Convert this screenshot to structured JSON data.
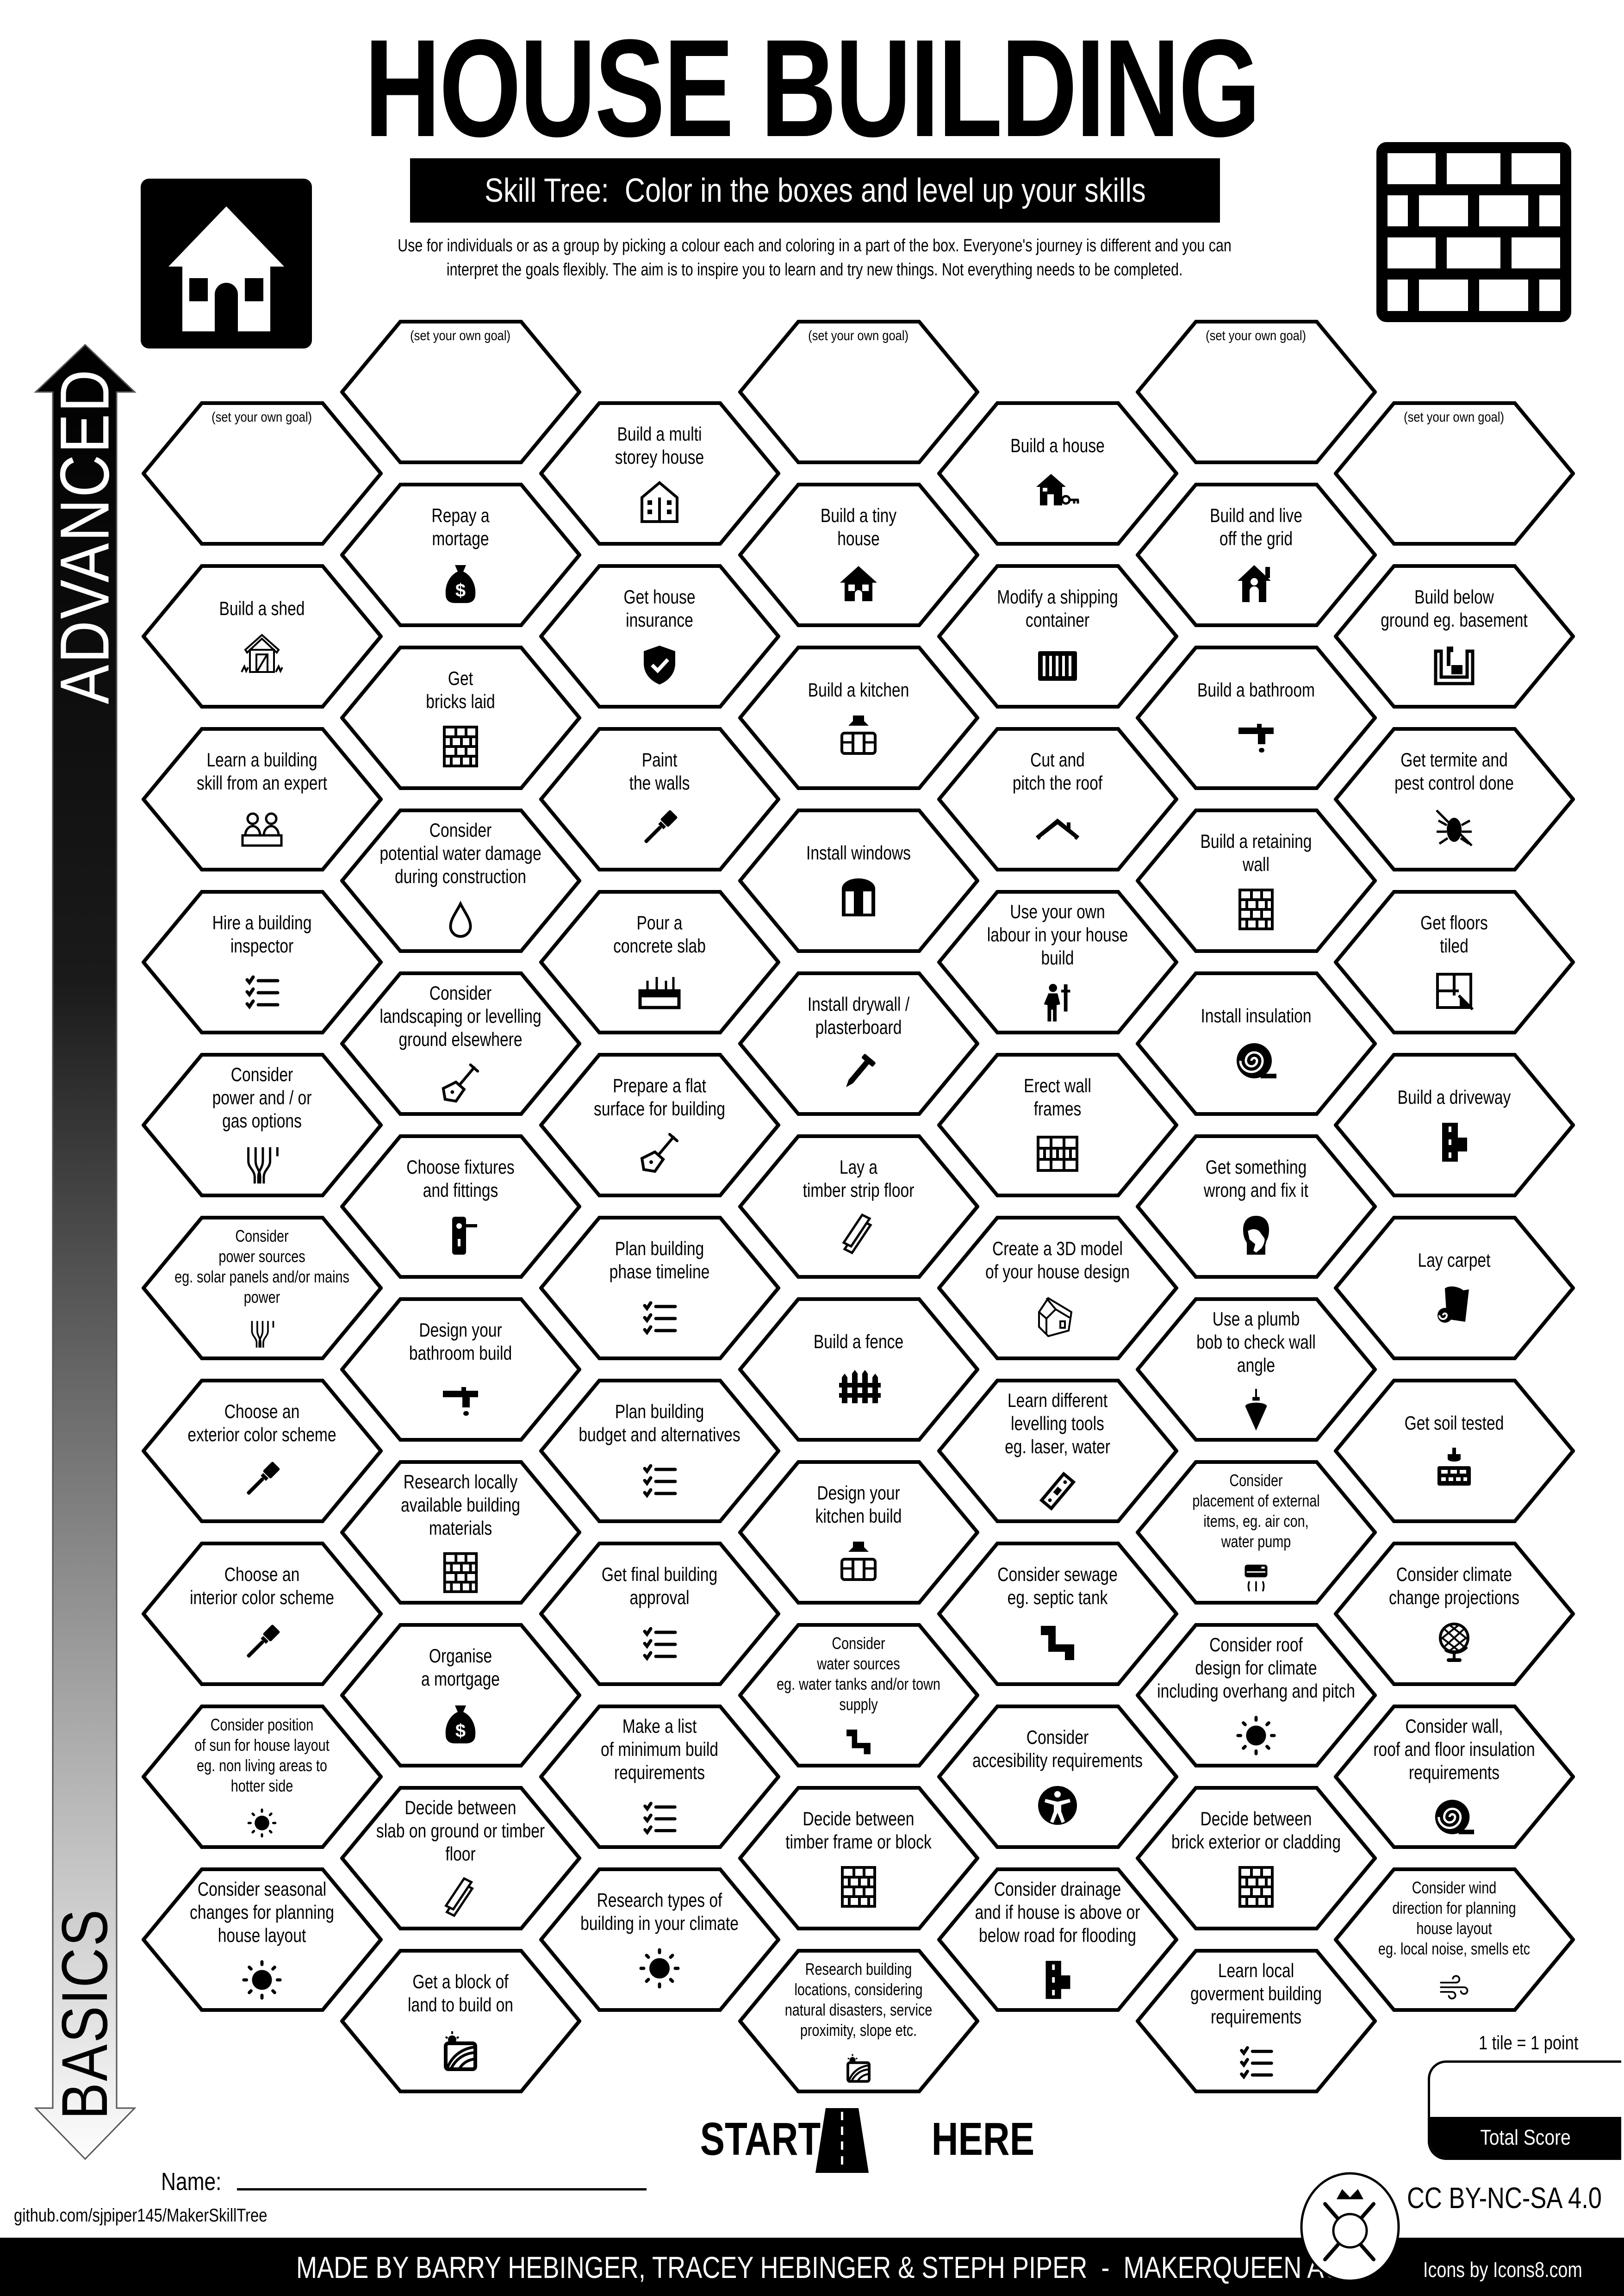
{
  "header": {
    "title": "HOUSE BUILDING",
    "subtitle": "Skill Tree:  Color in the boxes and level up your skills",
    "description_line1": "Use for individuals or as a group by picking a colour each and coloring in a part of the box.  Everyone's journey is different and you can",
    "description_line2": "interpret the goals flexibly.  The aim is to inspire you to learn and try new things. Not everything needs to be completed.",
    "left_icon": "house-icon",
    "right_icon": "brick-wall-icon"
  },
  "progress_arrow": {
    "top_label": "ADVANCED",
    "bottom_label": "BASICS"
  },
  "goal_text": "(set your own goal)",
  "columns": [
    [
      {
        "goal": true
      },
      {
        "text": "Build a shed",
        "icon": "shed"
      },
      {
        "text": "Learn a building\nskill from an expert",
        "icon": "teachers"
      },
      {
        "text": "Hire a building\ninspector",
        "icon": "checklist"
      },
      {
        "text": "Consider\npower and / or\ngas options",
        "icon": "cables"
      },
      {
        "text": "Consider\npower sources\neg. solar panels and/or mains\npower",
        "icon": "cables"
      },
      {
        "text": "Choose an\nexterior color scheme",
        "icon": "paintbrush"
      },
      {
        "text": "Choose an\ninterior color scheme",
        "icon": "paintbrush"
      },
      {
        "text": "Consider position\nof sun for house layout\neg. non living areas to\nhotter side",
        "icon": "sun"
      },
      {
        "text": "Consider seasonal\nchanges for planning\nhouse layout",
        "icon": "sun"
      }
    ],
    [
      {
        "goal": true
      },
      {
        "text": "Repay a\nmortage",
        "icon": "money-bag"
      },
      {
        "text": "Get\nbricks laid",
        "icon": "bricks"
      },
      {
        "text": "Consider\npotential water damage\nduring construction",
        "icon": "drop"
      },
      {
        "text": "Consider\nlandscaping or levelling\nground elsewhere",
        "icon": "shovel"
      },
      {
        "text": "Choose fixtures\nand fittings",
        "icon": "door-handle"
      },
      {
        "text": "Design your\nbathroom build",
        "icon": "faucet"
      },
      {
        "text": "Research locally\navailable building\nmaterials",
        "icon": "bricks"
      },
      {
        "text": "Organise\na mortgage",
        "icon": "money-bag"
      },
      {
        "text": "Decide between\nslab on ground or timber\nfloor",
        "icon": "planks"
      },
      {
        "text": "Get a block of\nland to build on",
        "icon": "land"
      }
    ],
    [
      {
        "text": "Build a multi\nstorey house",
        "icon": "house-multi"
      },
      {
        "text": "Get house\ninsurance",
        "icon": "shield"
      },
      {
        "text": "Paint\nthe walls",
        "icon": "paintbrush"
      },
      {
        "text": "Pour a\nconcrete slab",
        "icon": "slab"
      },
      {
        "text": "Prepare a flat\nsurface for building",
        "icon": "shovel"
      },
      {
        "text": "Plan building\nphase timeline",
        "icon": "checklist"
      },
      {
        "text": "Plan building\nbudget and alternatives",
        "icon": "checklist"
      },
      {
        "text": "Get final building\napproval",
        "icon": "checklist"
      },
      {
        "text": "Make a list\nof minimum build\nrequirements",
        "icon": "checklist"
      },
      {
        "text": "Research types of\nbuilding in your climate",
        "icon": "sun"
      }
    ],
    [
      {
        "goal": true
      },
      {
        "text": "Build a tiny\nhouse",
        "icon": "house"
      },
      {
        "text": "Build a kitchen",
        "icon": "kitchen"
      },
      {
        "text": "Install windows",
        "icon": "window"
      },
      {
        "text": "Install drywall /\nplasterboard",
        "icon": "screw"
      },
      {
        "text": "Lay a\ntimber strip floor",
        "icon": "planks"
      },
      {
        "text": "Build a fence",
        "icon": "fence"
      },
      {
        "text": "Design your\nkitchen build",
        "icon": "kitchen"
      },
      {
        "text": "Consider\nwater sources\neg. water tanks and/or town\nsupply",
        "icon": "pipe"
      },
      {
        "text": "Decide between\ntimber frame or block",
        "icon": "bricks"
      },
      {
        "text": "Research building\nlocations, considering\nnatural disasters, service\nproximity, slope etc.",
        "icon": "land"
      }
    ],
    [
      {
        "text": "Build a house",
        "icon": "house-key"
      },
      {
        "text": "Modify a shipping\ncontainer",
        "icon": "container"
      },
      {
        "text": "Cut and\npitch the roof",
        "icon": "roof"
      },
      {
        "text": "Use your own\nlabour in your house\nbuild",
        "icon": "worker"
      },
      {
        "text": "Erect wall\nframes",
        "icon": "wall-frame"
      },
      {
        "text": "Create a 3D model\nof your house design",
        "icon": "house-3d"
      },
      {
        "text": "Learn different\nlevelling tools\neg. laser, water",
        "icon": "level"
      },
      {
        "text": "Consider sewage\neg. septic tank",
        "icon": "pipe"
      },
      {
        "text": "Consider\naccesibility requirements",
        "icon": "accessibility"
      },
      {
        "text": "Consider drainage\nand if house is above or\nbelow road for flooding",
        "icon": "road"
      }
    ],
    [
      {
        "goal": true
      },
      {
        "text": "Build and live\noff the grid",
        "icon": "house-off-grid"
      },
      {
        "text": "Build a bathroom",
        "icon": "faucet"
      },
      {
        "text": "Build a retaining\nwall",
        "icon": "bricks"
      },
      {
        "text": "Install insulation",
        "icon": "insulation"
      },
      {
        "text": "Get something\nwrong and fix it",
        "icon": "facepalm"
      },
      {
        "text": "Use a plumb\nbob to check wall\nangle",
        "icon": "plumb-bob"
      },
      {
        "text": "Consider\nplacement of external\nitems, eg. air con,\nwater pump",
        "icon": "air-conditioner"
      },
      {
        "text": "Consider roof\ndesign for climate\nincluding overhang and pitch",
        "icon": "sun"
      },
      {
        "text": "Decide between\nbrick exterior or cladding",
        "icon": "bricks"
      },
      {
        "text": "Learn local\ngoverment building\nrequirements",
        "icon": "checklist"
      }
    ],
    [
      {
        "goal": true
      },
      {
        "text": "Build below\nground eg. basement",
        "icon": "basement"
      },
      {
        "text": "Get termite and\npest control done",
        "icon": "pest"
      },
      {
        "text": "Get floors\ntiled",
        "icon": "tiles"
      },
      {
        "text": "Build a driveway",
        "icon": "road"
      },
      {
        "text": "Lay carpet",
        "icon": "carpet"
      },
      {
        "text": "Get soil tested",
        "icon": "soil"
      },
      {
        "text": "Consider climate\nchange projections",
        "icon": "globe"
      },
      {
        "text": "Consider wall,\nroof and floor insulation\nrequirements",
        "icon": "insulation"
      },
      {
        "text": "Consider wind\ndirection for planning\nhouse layout\neg. local noise, smells etc",
        "icon": "wind"
      }
    ]
  ],
  "start": {
    "left": "START",
    "right": "HERE",
    "icon": "road-icon"
  },
  "score": {
    "note": "1 tile = 1 point",
    "label": "Total Score",
    "value": ""
  },
  "name_label": "Name:",
  "name_value": "",
  "github": "github.com/sjpiper145/MakerSkillTree",
  "license": "CC BY-NC-SA 4.0",
  "footer": {
    "credits": "MADE BY BARRY HEBINGER, TRACEY HEBINGER & STEPH PIPER  -  MAKERQUEEN AU",
    "icons_credit": "Icons by Icons8.com",
    "logo": "makerqueen-logo"
  }
}
